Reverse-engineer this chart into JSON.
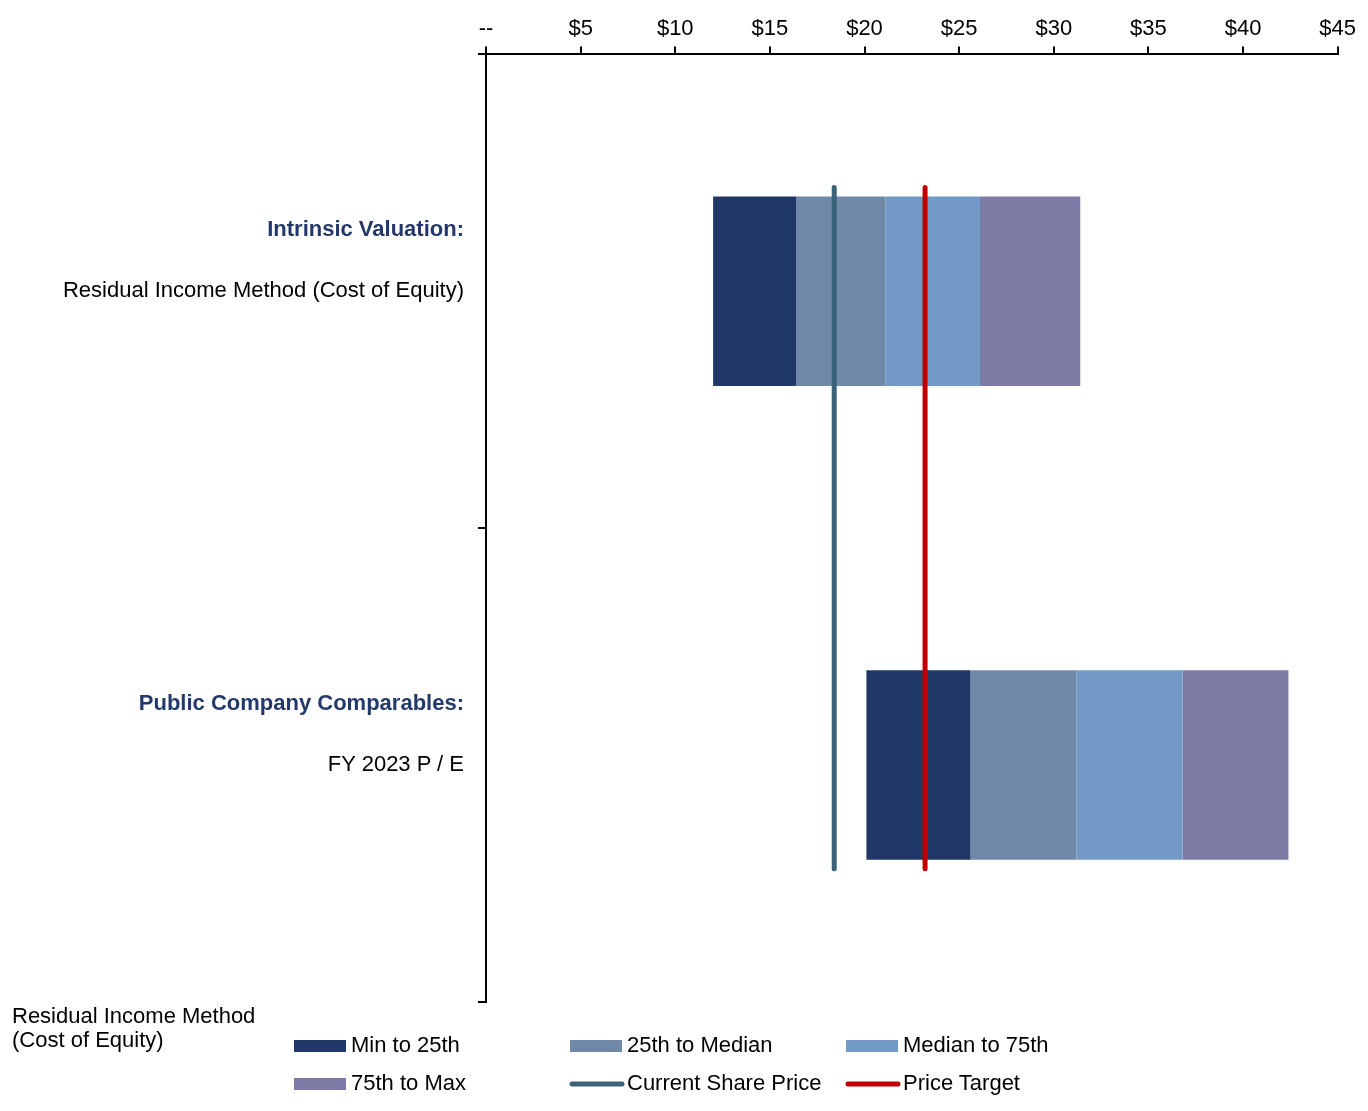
{
  "chart_data": {
    "type": "bar",
    "orientation": "horizontal",
    "categories": [
      "Residual Income Method (Cost of Equity)",
      "FY 2023 P / E"
    ],
    "series": [
      {
        "name": "Min to 25th",
        "color": "#1f3868",
        "base": [
          12.0,
          20.1
        ],
        "values": [
          4.4,
          5.5
        ]
      },
      {
        "name": "25th to Median",
        "color": "#7189a8",
        "base": [
          16.4,
          25.6
        ],
        "values": [
          4.7,
          5.6
        ]
      },
      {
        "name": "Median to 75th",
        "color": "#7399c6",
        "base": [
          21.1,
          31.2
        ],
        "values": [
          5.0,
          5.6
        ]
      },
      {
        "name": "75th to Max",
        "color": "#7c7ca6",
        "base": [
          26.1,
          36.8
        ],
        "values": [
          5.3,
          5.6
        ]
      }
    ],
    "ref_lines": [
      {
        "axis": "x",
        "value": 18.4,
        "label": "Current Share Price",
        "color": "#3b6278"
      },
      {
        "axis": "x",
        "value": 23.2,
        "label": "Price Target",
        "color": "#c00000"
      }
    ],
    "xlim": [
      0,
      45
    ],
    "xticks": [
      {
        "value": 0,
        "label": "--"
      },
      {
        "value": 5,
        "label": "$5"
      },
      {
        "value": 10,
        "label": "$10"
      },
      {
        "value": 15,
        "label": "$15"
      },
      {
        "value": 20,
        "label": "$20"
      },
      {
        "value": 25,
        "label": "$25"
      },
      {
        "value": 30,
        "label": "$30"
      },
      {
        "value": 35,
        "label": "$35"
      },
      {
        "value": 40,
        "label": "$40"
      },
      {
        "value": 45,
        "label": "$45"
      }
    ],
    "annotations": [
      "Intrinsic Valuation:",
      "Public Company Comparables:",
      "Residual Income Method (Cost of Equity)"
    ],
    "grid": false,
    "legend": "bottom"
  }
}
